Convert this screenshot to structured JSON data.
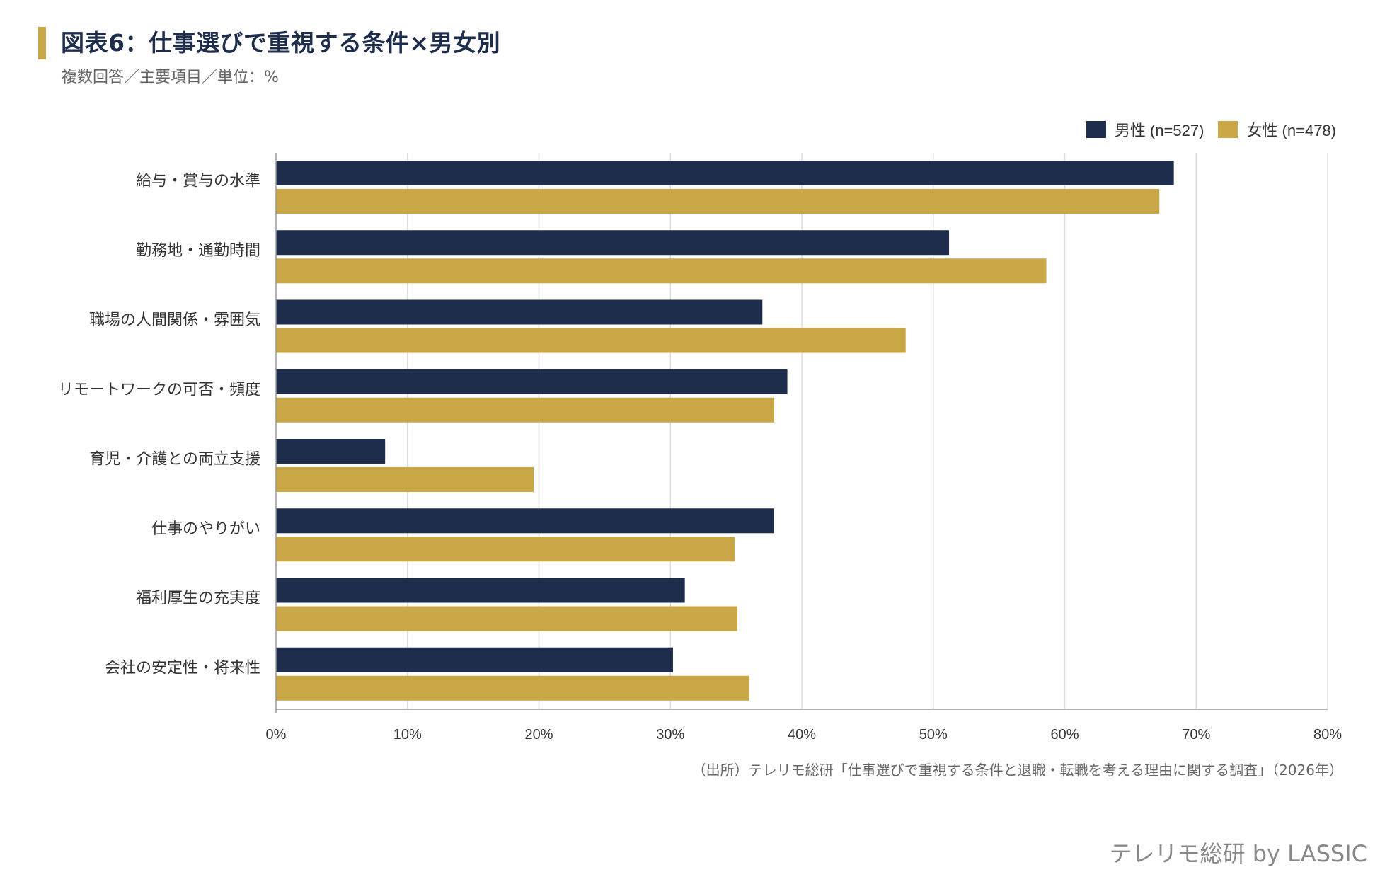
{
  "header": {
    "title": "図表6：仕事選びで重視する条件×男女別",
    "subtitle": "複数回答／主要項目／単位：%"
  },
  "colors": {
    "male": "#1f2d4d",
    "female": "#c9a646",
    "accent_bar": "#c9a646",
    "title": "#1f2d4d",
    "grid": "#dddddd",
    "axis": "#999999"
  },
  "chart_data": {
    "type": "bar",
    "orientation": "horizontal",
    "categories": [
      "給与・賞与の水準",
      "勤務地・通勤時間",
      "職場の人間関係・雰囲気",
      "リモートワークの可否・頻度",
      "育児・介護との両立支援",
      "仕事のやりがい",
      "福利厚生の充実度",
      "会社の安定性・将来性"
    ],
    "series": [
      {
        "name": "男性 (n=527)",
        "color": "#1f2d4d",
        "values": [
          68.3,
          51.2,
          37.0,
          38.9,
          8.3,
          37.9,
          31.1,
          30.2
        ]
      },
      {
        "name": "女性 (n=478)",
        "color": "#c9a646",
        "values": [
          67.2,
          58.6,
          47.9,
          37.9,
          19.6,
          34.9,
          35.1,
          36.0
        ]
      }
    ],
    "xlim": [
      0,
      80
    ],
    "xticks": [
      "0%",
      "10%",
      "20%",
      "30%",
      "40%",
      "50%",
      "60%",
      "70%",
      "80%"
    ],
    "xlabel": "",
    "ylabel": "",
    "grid": true,
    "legend_position": "top-right"
  },
  "footer": {
    "source": "（出所）テレリモ総研「仕事選びで重視する条件と退職・転職を考える理由に関する調査」（2026年）",
    "brand": "テレリモ総研 by LASSIC"
  }
}
